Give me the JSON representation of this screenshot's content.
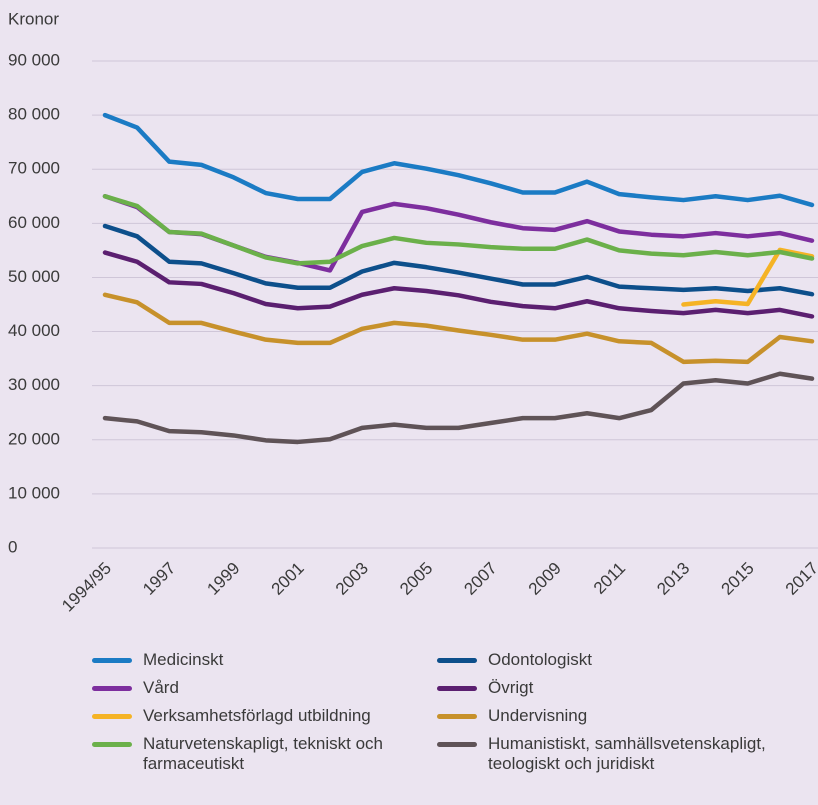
{
  "chart_data": {
    "type": "line",
    "ylabel": "Kronor",
    "categories": [
      "1994/95",
      null,
      "1997",
      null,
      "1999",
      null,
      "2001",
      null,
      "2003",
      null,
      "2005",
      null,
      "2007",
      null,
      "2009",
      null,
      "2011",
      null,
      "2013",
      null,
      "2015",
      null,
      "2017"
    ],
    "ylim": [
      0,
      90000
    ],
    "yticks": [
      0,
      {
        "value": 10000,
        "label": "10 000"
      },
      {
        "value": 20000,
        "label": "20 000"
      },
      {
        "value": 30000,
        "label": "30 000"
      },
      {
        "value": 40000,
        "label": "40 000"
      },
      {
        "value": 50000,
        "label": "50 000"
      },
      {
        "value": 60000,
        "label": "60 000"
      },
      {
        "value": 70000,
        "label": "70 000"
      },
      {
        "value": 80000,
        "label": "80 000"
      },
      {
        "value": 90000,
        "label": "90 000"
      }
    ],
    "grid": true,
    "series": [
      {
        "name": "Medicinskt",
        "color": "#1b7bc4",
        "values": [
          80000,
          77700,
          71400,
          70800,
          68500,
          65600,
          64500,
          64500,
          69500,
          71100,
          70100,
          68900,
          67400,
          65700,
          65700,
          67700,
          65400,
          64800,
          64300,
          65000,
          64300,
          65100,
          63400
        ]
      },
      {
        "name": "Odontologiskt",
        "color": "#0d4f8b",
        "values": [
          59500,
          57600,
          52900,
          52600,
          50800,
          48900,
          48100,
          48100,
          51100,
          52700,
          51900,
          50900,
          49800,
          48700,
          48700,
          50100,
          48300,
          48000,
          47700,
          48000,
          47500,
          48000,
          46900
        ]
      },
      {
        "name": "Vård",
        "color": "#7d2e9e",
        "values": [
          65000,
          63000,
          58400,
          58000,
          55900,
          53800,
          52700,
          51300,
          62100,
          63600,
          62800,
          61600,
          60200,
          59100,
          58800,
          60400,
          58500,
          57900,
          57600,
          58200,
          57600,
          58200,
          56800
        ]
      },
      {
        "name": "Övrigt",
        "color": "#5b1f70",
        "values": [
          54600,
          52900,
          49100,
          48800,
          47100,
          45100,
          44300,
          44600,
          46800,
          48000,
          47500,
          46700,
          45500,
          44700,
          44300,
          45600,
          44300,
          43800,
          43400,
          44000,
          43400,
          44000,
          42800
        ]
      },
      {
        "name": "Verksamhetsförlagd utbildning",
        "color": "#f5b325",
        "values": [
          null,
          null,
          null,
          null,
          null,
          null,
          null,
          null,
          null,
          null,
          null,
          null,
          null,
          null,
          null,
          null,
          null,
          null,
          45000,
          45600,
          45100,
          55100,
          53900
        ]
      },
      {
        "name": "Undervisning",
        "color": "#c7912b",
        "values": [
          46800,
          45400,
          41600,
          41600,
          40000,
          38500,
          37900,
          37900,
          40500,
          41600,
          41100,
          40200,
          39400,
          38500,
          38500,
          39600,
          38200,
          37900,
          34400,
          34600,
          34400,
          39000,
          38200
        ]
      },
      {
        "name": "Naturvetenskapligt, tekniskt och farmaceutiskt",
        "color": "#6bb04a",
        "values": [
          65000,
          63200,
          58400,
          58100,
          55900,
          53700,
          52600,
          52900,
          55800,
          57300,
          56400,
          56100,
          55600,
          55300,
          55300,
          57000,
          55000,
          54400,
          54100,
          54700,
          54100,
          54700,
          53500
        ]
      },
      {
        "name": "Humanistiskt, samhällsvetenskapligt, teologiskt och juridiskt",
        "color": "#5f5357",
        "values": [
          24000,
          23400,
          21600,
          21400,
          20800,
          19900,
          19600,
          20100,
          22200,
          22800,
          22200,
          22200,
          23100,
          24000,
          24000,
          24900,
          24000,
          25500,
          30400,
          31000,
          30400,
          32200,
          31300
        ]
      }
    ]
  }
}
